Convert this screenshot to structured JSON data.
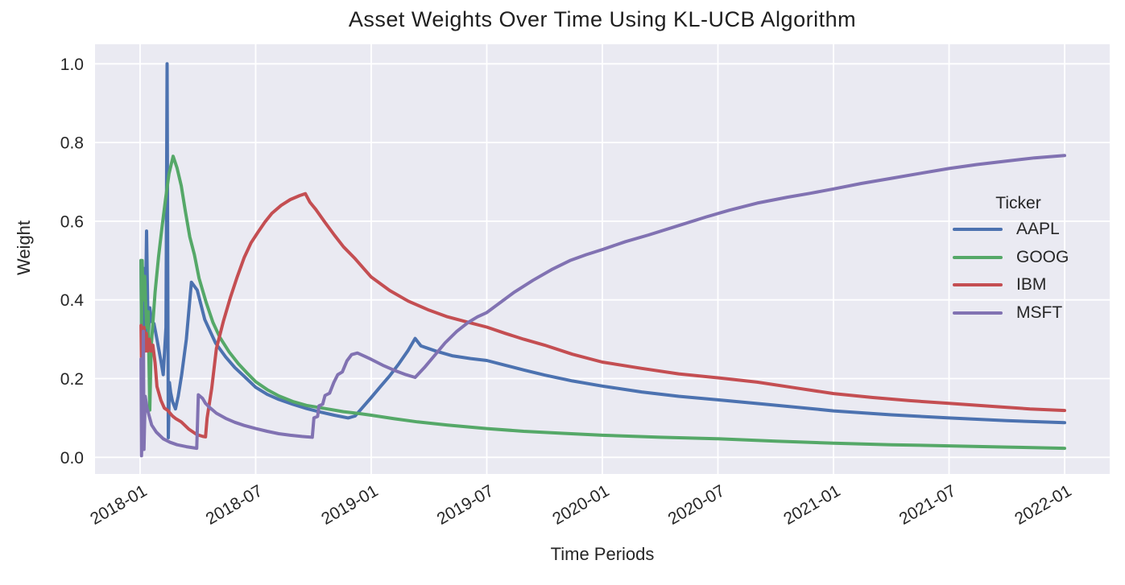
{
  "chart_data": {
    "type": "line",
    "title": "Asset Weights Over Time Using KL-UCB Algorithm",
    "xlabel": "Time Periods",
    "ylabel": "Weight",
    "legend_title": "Ticker",
    "legend_position": "center right",
    "grid": true,
    "plot_background": "#eaeaf2",
    "grid_color": "#ffffff",
    "text_color": "#262626",
    "x_axis": {
      "unit": "year-month",
      "range": [
        2017.805,
        2022.195
      ],
      "ticks": [
        {
          "pos": 2018.0,
          "label": "2018-01"
        },
        {
          "pos": 2018.5,
          "label": "2018-07"
        },
        {
          "pos": 2019.0,
          "label": "2019-01"
        },
        {
          "pos": 2019.5,
          "label": "2019-07"
        },
        {
          "pos": 2020.0,
          "label": "2020-01"
        },
        {
          "pos": 2020.5,
          "label": "2020-07"
        },
        {
          "pos": 2021.0,
          "label": "2021-01"
        },
        {
          "pos": 2021.5,
          "label": "2021-07"
        },
        {
          "pos": 2022.0,
          "label": "2022-01"
        }
      ],
      "tick_rotation_deg": -30
    },
    "y_axis": {
      "range": [
        -0.0423,
        1.0497
      ],
      "ticks": [
        {
          "pos": 0.0,
          "label": "0.0"
        },
        {
          "pos": 0.2,
          "label": "0.2"
        },
        {
          "pos": 0.4,
          "label": "0.4"
        },
        {
          "pos": 0.6,
          "label": "0.6"
        },
        {
          "pos": 0.8,
          "label": "0.8"
        },
        {
          "pos": 1.0,
          "label": "1.0"
        }
      ]
    },
    "series": [
      {
        "name": "AAPL",
        "color": "#4c72b0",
        "points": [
          [
            2018.004,
            0.5
          ],
          [
            2018.006,
            0.3
          ],
          [
            2018.008,
            0.45
          ],
          [
            2018.012,
            0.33
          ],
          [
            2018.016,
            0.48
          ],
          [
            2018.021,
            0.28
          ],
          [
            2018.028,
            0.575
          ],
          [
            2018.035,
            0.3
          ],
          [
            2018.042,
            0.38
          ],
          [
            2018.05,
            0.345
          ],
          [
            2018.06,
            0.34
          ],
          [
            2018.073,
            0.3
          ],
          [
            2018.09,
            0.245
          ],
          [
            2018.1,
            0.21
          ],
          [
            2018.112,
            0.33
          ],
          [
            2018.117,
            1.0
          ],
          [
            2018.122,
            0.05
          ],
          [
            2018.127,
            0.19
          ],
          [
            2018.132,
            0.165
          ],
          [
            2018.14,
            0.142
          ],
          [
            2018.153,
            0.123
          ],
          [
            2018.165,
            0.155
          ],
          [
            2018.18,
            0.21
          ],
          [
            2018.2,
            0.3
          ],
          [
            2018.215,
            0.4
          ],
          [
            2018.222,
            0.445
          ],
          [
            2018.247,
            0.425
          ],
          [
            2018.28,
            0.35
          ],
          [
            2018.327,
            0.29
          ],
          [
            2018.37,
            0.255
          ],
          [
            2018.41,
            0.228
          ],
          [
            2018.45,
            0.206
          ],
          [
            2018.5,
            0.178
          ],
          [
            2018.55,
            0.16
          ],
          [
            2018.6,
            0.147
          ],
          [
            2018.66,
            0.135
          ],
          [
            2018.72,
            0.124
          ],
          [
            2018.78,
            0.115
          ],
          [
            2018.84,
            0.107
          ],
          [
            2018.9,
            0.1
          ],
          [
            2018.93,
            0.105
          ],
          [
            2018.96,
            0.125
          ],
          [
            2019.0,
            0.152
          ],
          [
            2019.04,
            0.18
          ],
          [
            2019.08,
            0.207
          ],
          [
            2019.12,
            0.238
          ],
          [
            2019.16,
            0.272
          ],
          [
            2019.19,
            0.302
          ],
          [
            2019.215,
            0.283
          ],
          [
            2019.28,
            0.27
          ],
          [
            2019.35,
            0.258
          ],
          [
            2019.43,
            0.251
          ],
          [
            2019.5,
            0.246
          ],
          [
            2019.58,
            0.234
          ],
          [
            2019.66,
            0.222
          ],
          [
            2019.75,
            0.209
          ],
          [
            2019.87,
            0.194
          ],
          [
            2020.0,
            0.181
          ],
          [
            2020.17,
            0.166
          ],
          [
            2020.33,
            0.155
          ],
          [
            2020.5,
            0.146
          ],
          [
            2020.7,
            0.135
          ],
          [
            2020.9,
            0.124
          ],
          [
            2021.0,
            0.118
          ],
          [
            2021.25,
            0.108
          ],
          [
            2021.5,
            0.1
          ],
          [
            2021.75,
            0.093
          ],
          [
            2022.0,
            0.088
          ]
        ]
      },
      {
        "name": "GOOG",
        "color": "#55a868",
        "points": [
          [
            2018.004,
            0.5
          ],
          [
            2018.006,
            0.335
          ],
          [
            2018.009,
            0.5
          ],
          [
            2018.013,
            0.4
          ],
          [
            2018.02,
            0.46
          ],
          [
            2018.028,
            0.33
          ],
          [
            2018.035,
            0.37
          ],
          [
            2018.042,
            0.12
          ],
          [
            2018.048,
            0.28
          ],
          [
            2018.055,
            0.34
          ],
          [
            2018.065,
            0.42
          ],
          [
            2018.08,
            0.51
          ],
          [
            2018.095,
            0.585
          ],
          [
            2018.11,
            0.655
          ],
          [
            2018.125,
            0.72
          ],
          [
            2018.143,
            0.765
          ],
          [
            2018.16,
            0.735
          ],
          [
            2018.178,
            0.69
          ],
          [
            2018.196,
            0.625
          ],
          [
            2018.215,
            0.56
          ],
          [
            2018.235,
            0.515
          ],
          [
            2018.255,
            0.455
          ],
          [
            2018.285,
            0.395
          ],
          [
            2018.315,
            0.343
          ],
          [
            2018.345,
            0.305
          ],
          [
            2018.385,
            0.268
          ],
          [
            2018.425,
            0.238
          ],
          [
            2018.465,
            0.213
          ],
          [
            2018.5,
            0.192
          ],
          [
            2018.55,
            0.172
          ],
          [
            2018.6,
            0.156
          ],
          [
            2018.66,
            0.142
          ],
          [
            2018.72,
            0.132
          ],
          [
            2018.8,
            0.124
          ],
          [
            2018.88,
            0.116
          ],
          [
            2018.95,
            0.111
          ],
          [
            2019.0,
            0.107
          ],
          [
            2019.1,
            0.098
          ],
          [
            2019.2,
            0.09
          ],
          [
            2019.33,
            0.082
          ],
          [
            2019.5,
            0.073
          ],
          [
            2019.66,
            0.066
          ],
          [
            2019.83,
            0.061
          ],
          [
            2020.0,
            0.056
          ],
          [
            2020.25,
            0.051
          ],
          [
            2020.5,
            0.047
          ],
          [
            2020.75,
            0.041
          ],
          [
            2021.0,
            0.036
          ],
          [
            2021.25,
            0.032
          ],
          [
            2021.5,
            0.029
          ],
          [
            2021.75,
            0.026
          ],
          [
            2022.0,
            0.023
          ]
        ]
      },
      {
        "name": "IBM",
        "color": "#c44e52",
        "points": [
          [
            2018.004,
            0.335
          ],
          [
            2018.006,
            0.23
          ],
          [
            2018.009,
            0.31
          ],
          [
            2018.013,
            0.25
          ],
          [
            2018.017,
            0.33
          ],
          [
            2018.022,
            0.27
          ],
          [
            2018.027,
            0.315
          ],
          [
            2018.033,
            0.27
          ],
          [
            2018.04,
            0.3
          ],
          [
            2018.048,
            0.27
          ],
          [
            2018.055,
            0.285
          ],
          [
            2018.065,
            0.24
          ],
          [
            2018.073,
            0.18
          ],
          [
            2018.09,
            0.145
          ],
          [
            2018.105,
            0.125
          ],
          [
            2018.12,
            0.119
          ],
          [
            2018.14,
            0.105
          ],
          [
            2018.155,
            0.098
          ],
          [
            2018.178,
            0.09
          ],
          [
            2018.21,
            0.072
          ],
          [
            2018.245,
            0.058
          ],
          [
            2018.272,
            0.053
          ],
          [
            2018.283,
            0.052
          ],
          [
            2018.29,
            0.1
          ],
          [
            2018.31,
            0.175
          ],
          [
            2018.33,
            0.276
          ],
          [
            2018.36,
            0.345
          ],
          [
            2018.39,
            0.405
          ],
          [
            2018.42,
            0.458
          ],
          [
            2018.45,
            0.507
          ],
          [
            2018.48,
            0.545
          ],
          [
            2018.51,
            0.572
          ],
          [
            2018.54,
            0.598
          ],
          [
            2018.57,
            0.62
          ],
          [
            2018.61,
            0.64
          ],
          [
            2018.65,
            0.655
          ],
          [
            2018.69,
            0.665
          ],
          [
            2018.715,
            0.67
          ],
          [
            2018.735,
            0.648
          ],
          [
            2018.76,
            0.63
          ],
          [
            2018.8,
            0.597
          ],
          [
            2018.84,
            0.565
          ],
          [
            2018.88,
            0.535
          ],
          [
            2018.93,
            0.505
          ],
          [
            2018.97,
            0.478
          ],
          [
            2019.0,
            0.458
          ],
          [
            2019.08,
            0.424
          ],
          [
            2019.16,
            0.397
          ],
          [
            2019.25,
            0.374
          ],
          [
            2019.33,
            0.357
          ],
          [
            2019.42,
            0.343
          ],
          [
            2019.5,
            0.331
          ],
          [
            2019.58,
            0.315
          ],
          [
            2019.66,
            0.3
          ],
          [
            2019.75,
            0.285
          ],
          [
            2019.87,
            0.262
          ],
          [
            2020.0,
            0.242
          ],
          [
            2020.17,
            0.226
          ],
          [
            2020.33,
            0.212
          ],
          [
            2020.5,
            0.202
          ],
          [
            2020.67,
            0.191
          ],
          [
            2020.85,
            0.175
          ],
          [
            2021.0,
            0.162
          ],
          [
            2021.17,
            0.152
          ],
          [
            2021.33,
            0.144
          ],
          [
            2021.5,
            0.137
          ],
          [
            2021.7,
            0.129
          ],
          [
            2021.85,
            0.123
          ],
          [
            2022.0,
            0.119
          ]
        ]
      },
      {
        "name": "MSFT",
        "color": "#8172b2",
        "points": [
          [
            2018.004,
            0.25
          ],
          [
            2018.006,
            0.004
          ],
          [
            2018.01,
            0.07
          ],
          [
            2018.014,
            0.32
          ],
          [
            2018.017,
            0.02
          ],
          [
            2018.022,
            0.155
          ],
          [
            2018.03,
            0.125
          ],
          [
            2018.05,
            0.082
          ],
          [
            2018.07,
            0.064
          ],
          [
            2018.1,
            0.047
          ],
          [
            2018.13,
            0.038
          ],
          [
            2018.16,
            0.032
          ],
          [
            2018.2,
            0.027
          ],
          [
            2018.245,
            0.023
          ],
          [
            2018.252,
            0.159
          ],
          [
            2018.27,
            0.15
          ],
          [
            2018.283,
            0.137
          ],
          [
            2018.3,
            0.127
          ],
          [
            2018.33,
            0.112
          ],
          [
            2018.37,
            0.099
          ],
          [
            2018.41,
            0.089
          ],
          [
            2018.45,
            0.081
          ],
          [
            2018.5,
            0.073
          ],
          [
            2018.55,
            0.066
          ],
          [
            2018.6,
            0.06
          ],
          [
            2018.65,
            0.056
          ],
          [
            2018.7,
            0.053
          ],
          [
            2018.745,
            0.051
          ],
          [
            2018.752,
            0.1
          ],
          [
            2018.768,
            0.104
          ],
          [
            2018.774,
            0.131
          ],
          [
            2018.79,
            0.135
          ],
          [
            2018.8,
            0.157
          ],
          [
            2018.82,
            0.163
          ],
          [
            2018.838,
            0.19
          ],
          [
            2018.855,
            0.21
          ],
          [
            2018.875,
            0.217
          ],
          [
            2018.895,
            0.245
          ],
          [
            2018.915,
            0.261
          ],
          [
            2018.94,
            0.265
          ],
          [
            2018.97,
            0.257
          ],
          [
            2019.0,
            0.249
          ],
          [
            2019.05,
            0.234
          ],
          [
            2019.1,
            0.221
          ],
          [
            2019.15,
            0.21
          ],
          [
            2019.19,
            0.203
          ],
          [
            2019.23,
            0.228
          ],
          [
            2019.27,
            0.256
          ],
          [
            2019.32,
            0.291
          ],
          [
            2019.37,
            0.32
          ],
          [
            2019.42,
            0.343
          ],
          [
            2019.46,
            0.357
          ],
          [
            2019.5,
            0.368
          ],
          [
            2019.56,
            0.394
          ],
          [
            2019.62,
            0.42
          ],
          [
            2019.7,
            0.45
          ],
          [
            2019.78,
            0.477
          ],
          [
            2019.86,
            0.5
          ],
          [
            2019.93,
            0.515
          ],
          [
            2020.0,
            0.528
          ],
          [
            2020.1,
            0.548
          ],
          [
            2020.2,
            0.565
          ],
          [
            2020.33,
            0.589
          ],
          [
            2020.45,
            0.611
          ],
          [
            2020.55,
            0.628
          ],
          [
            2020.67,
            0.646
          ],
          [
            2020.8,
            0.661
          ],
          [
            2020.9,
            0.671
          ],
          [
            2021.0,
            0.682
          ],
          [
            2021.12,
            0.696
          ],
          [
            2021.25,
            0.709
          ],
          [
            2021.37,
            0.721
          ],
          [
            2021.5,
            0.734
          ],
          [
            2021.62,
            0.744
          ],
          [
            2021.75,
            0.753
          ],
          [
            2021.87,
            0.761
          ],
          [
            2022.0,
            0.767
          ]
        ]
      }
    ]
  }
}
